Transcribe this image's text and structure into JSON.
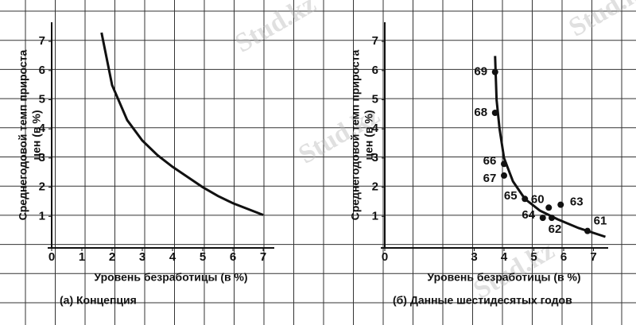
{
  "watermark": "Stud.kz",
  "chart_data": [
    {
      "type": "line",
      "title": "(а) Концепция",
      "xlabel": "Уровень безработицы (в %)",
      "ylabel": [
        "Среднегодовой темп прироста",
        "цен (в %)"
      ],
      "x": [
        1.65,
        2,
        2.5,
        3,
        3.5,
        4,
        4.5,
        5,
        5.5,
        6,
        6.5,
        7
      ],
      "values": [
        7.3,
        5.5,
        4.3,
        3.6,
        3.1,
        2.7,
        2.35,
        2.0,
        1.7,
        1.45,
        1.25,
        1.05
      ],
      "color": "#111111",
      "xlim": [
        0,
        7.5
      ],
      "ylim": [
        0,
        7.5
      ],
      "xticks": [
        0,
        1,
        2,
        3,
        4,
        5,
        6,
        7
      ],
      "yticks": [
        1,
        2,
        3,
        4,
        5,
        6,
        7
      ]
    },
    {
      "type": "scatter",
      "title": "(б) Данные шестидесятых годов",
      "xlabel": "Уровень безработицы (в %)",
      "ylabel": [
        "Среднегодовой темп прироста",
        "цен (в %)"
      ],
      "x": [
        5.5,
        6.8,
        5.6,
        5.9,
        5.3,
        4.7,
        4.0,
        4.0,
        3.7,
        3.7
      ],
      "values": [
        1.3,
        0.5,
        0.95,
        1.4,
        0.95,
        1.6,
        2.8,
        2.4,
        4.55,
        5.95
      ],
      "point_labels": [
        "60",
        "61",
        "62",
        "63",
        "64",
        "65",
        "66",
        "67",
        "68",
        "69"
      ],
      "curve": {
        "x": [
          3.7,
          3.75,
          3.85,
          4.0,
          4.3,
          4.7,
          5.2,
          5.8,
          6.5,
          7.4
        ],
        "values": [
          6.5,
          5.0,
          4.0,
          3.0,
          2.2,
          1.6,
          1.2,
          0.9,
          0.6,
          0.3
        ]
      },
      "color": "#111111",
      "xlim": [
        0,
        7.5
      ],
      "ylim": [
        0,
        7.5
      ],
      "xticks": [
        0,
        3,
        4,
        5,
        6,
        7
      ],
      "yticks": [
        1,
        2,
        3,
        4,
        5,
        6,
        7
      ]
    }
  ]
}
